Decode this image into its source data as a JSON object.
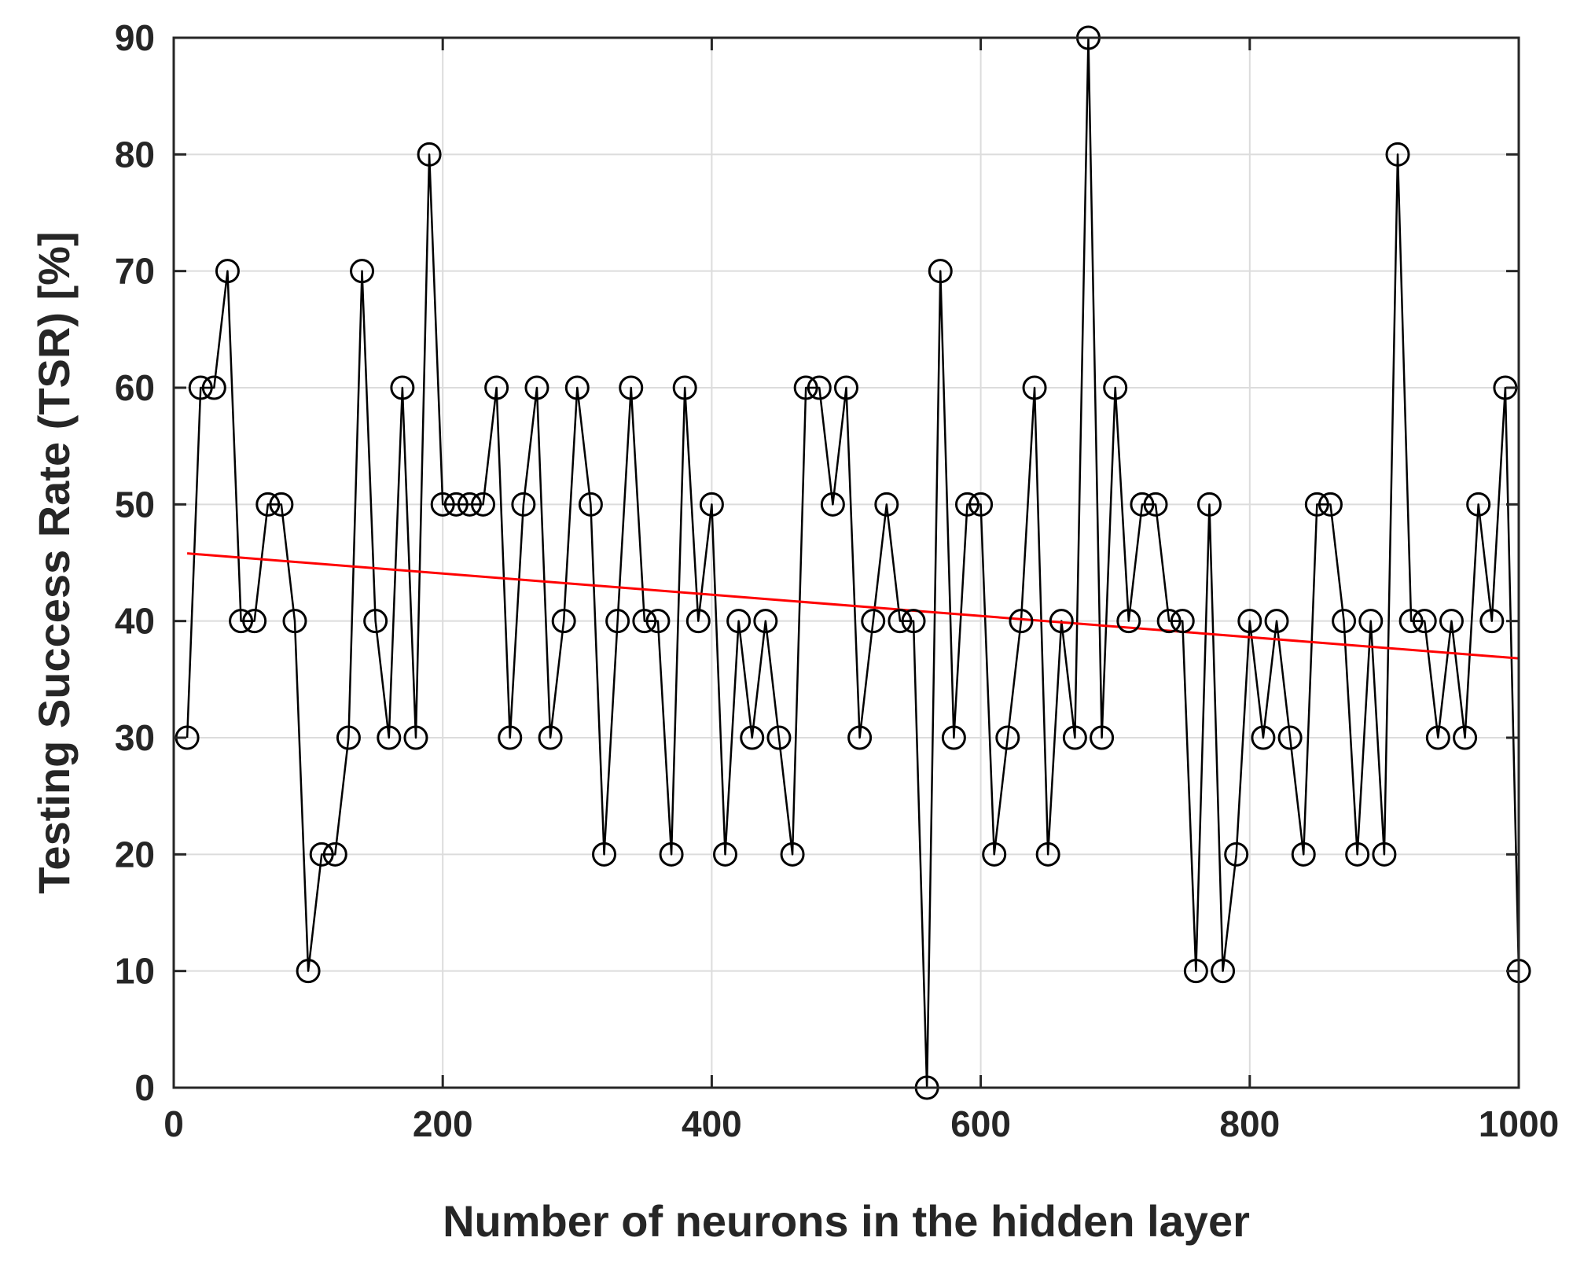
{
  "chart_data": {
    "type": "line",
    "xlabel": "Number of neurons in the hidden layer",
    "ylabel": "Testing Success Rate (TSR) [%]",
    "xlim": [
      0,
      1000
    ],
    "ylim": [
      0,
      90
    ],
    "x_ticks": [
      "0",
      "200",
      "400",
      "600",
      "800",
      "1000"
    ],
    "y_ticks": [
      "0",
      "10",
      "20",
      "30",
      "40",
      "50",
      "60",
      "70",
      "80",
      "90"
    ],
    "grid": true,
    "series": [
      {
        "marker": "circle",
        "color": "#000000",
        "x": [
          10,
          20,
          30,
          40,
          50,
          60,
          70,
          80,
          90,
          100,
          110,
          120,
          130,
          140,
          150,
          160,
          170,
          180,
          190,
          200,
          210,
          220,
          230,
          240,
          250,
          260,
          270,
          280,
          290,
          300,
          310,
          320,
          330,
          340,
          350,
          360,
          370,
          380,
          390,
          400,
          410,
          420,
          430,
          440,
          450,
          460,
          470,
          480,
          490,
          500,
          510,
          520,
          530,
          540,
          550,
          560,
          570,
          580,
          590,
          600,
          610,
          620,
          630,
          640,
          650,
          660,
          670,
          680,
          690,
          700,
          710,
          720,
          730,
          740,
          750,
          760,
          770,
          780,
          790,
          800,
          810,
          820,
          830,
          840,
          850,
          860,
          870,
          880,
          890,
          900,
          910,
          920,
          930,
          940,
          950,
          960,
          970,
          980,
          990,
          1000
        ],
        "values": [
          30,
          60,
          60,
          70,
          40,
          40,
          50,
          50,
          40,
          10,
          20,
          20,
          30,
          70,
          40,
          30,
          60,
          30,
          80,
          50,
          50,
          50,
          50,
          60,
          30,
          50,
          60,
          30,
          40,
          60,
          50,
          20,
          40,
          60,
          40,
          40,
          20,
          60,
          40,
          50,
          20,
          40,
          30,
          40,
          30,
          20,
          60,
          60,
          50,
          60,
          30,
          40,
          50,
          40,
          40,
          0,
          70,
          30,
          50,
          50,
          20,
          30,
          40,
          60,
          20,
          40,
          30,
          90,
          30,
          60,
          40,
          50,
          50,
          40,
          40,
          10,
          50,
          10,
          20,
          40,
          30,
          40,
          30,
          20,
          50,
          50,
          40,
          20,
          40,
          20,
          80,
          40,
          40,
          30,
          40,
          30,
          50,
          40,
          60,
          10
        ]
      },
      {
        "type": "trend-line",
        "color": "#ff0000",
        "x": [
          10,
          1000
        ],
        "values": [
          45.8,
          36.8
        ]
      }
    ]
  }
}
